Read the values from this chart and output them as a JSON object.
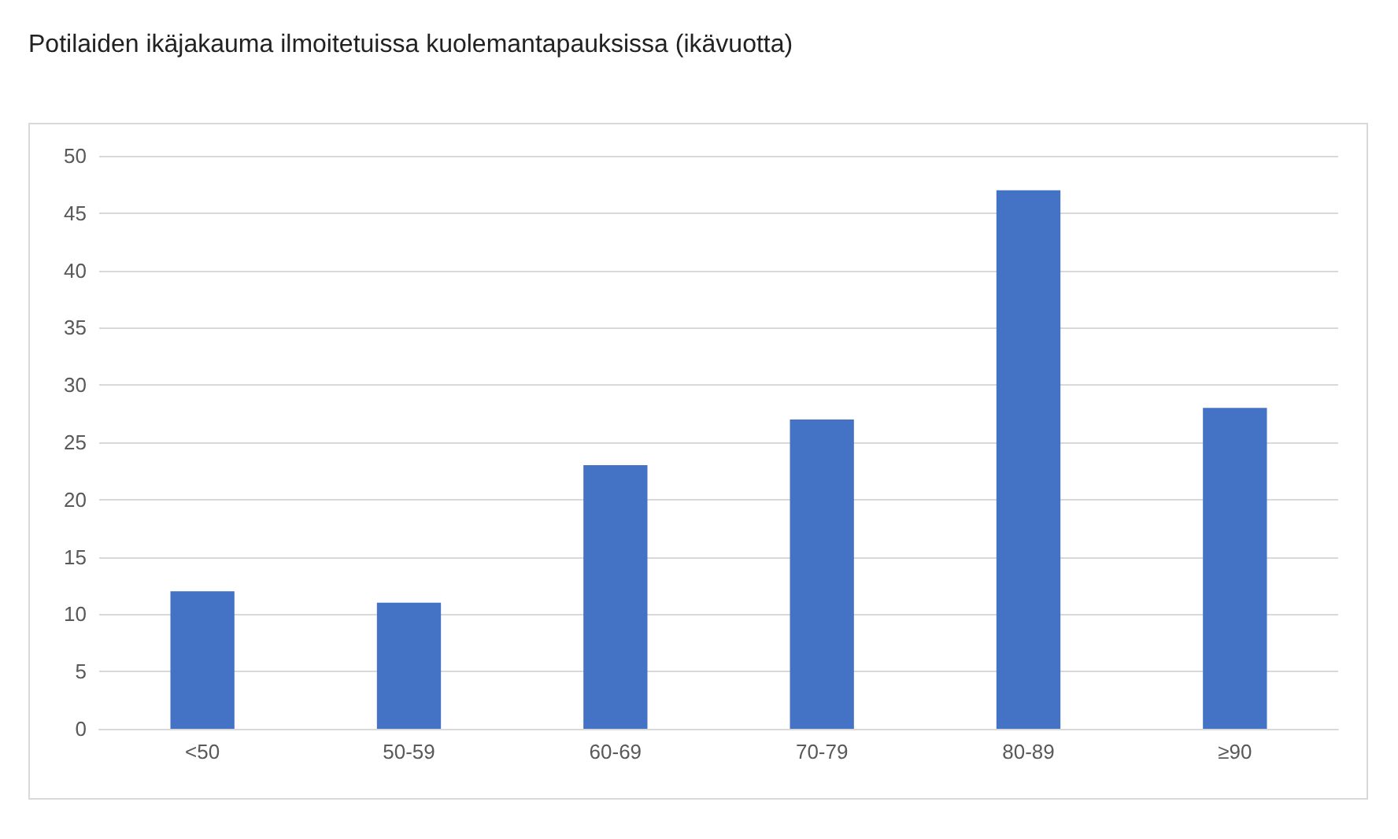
{
  "chart_data": {
    "type": "bar",
    "title": "Potilaiden ikäjakauma ilmoitetuissa kuolemantapauksissa (ikävuotta)",
    "categories": [
      "<50",
      "50-59",
      "60-69",
      "70-79",
      "80-89",
      "≥90"
    ],
    "values": [
      12,
      11,
      23,
      27,
      47,
      28
    ],
    "color": "#4472c4",
    "ylim": [
      0,
      50
    ],
    "yticks": [
      0,
      5,
      10,
      15,
      20,
      25,
      30,
      35,
      40,
      45,
      50
    ],
    "grid": true
  }
}
